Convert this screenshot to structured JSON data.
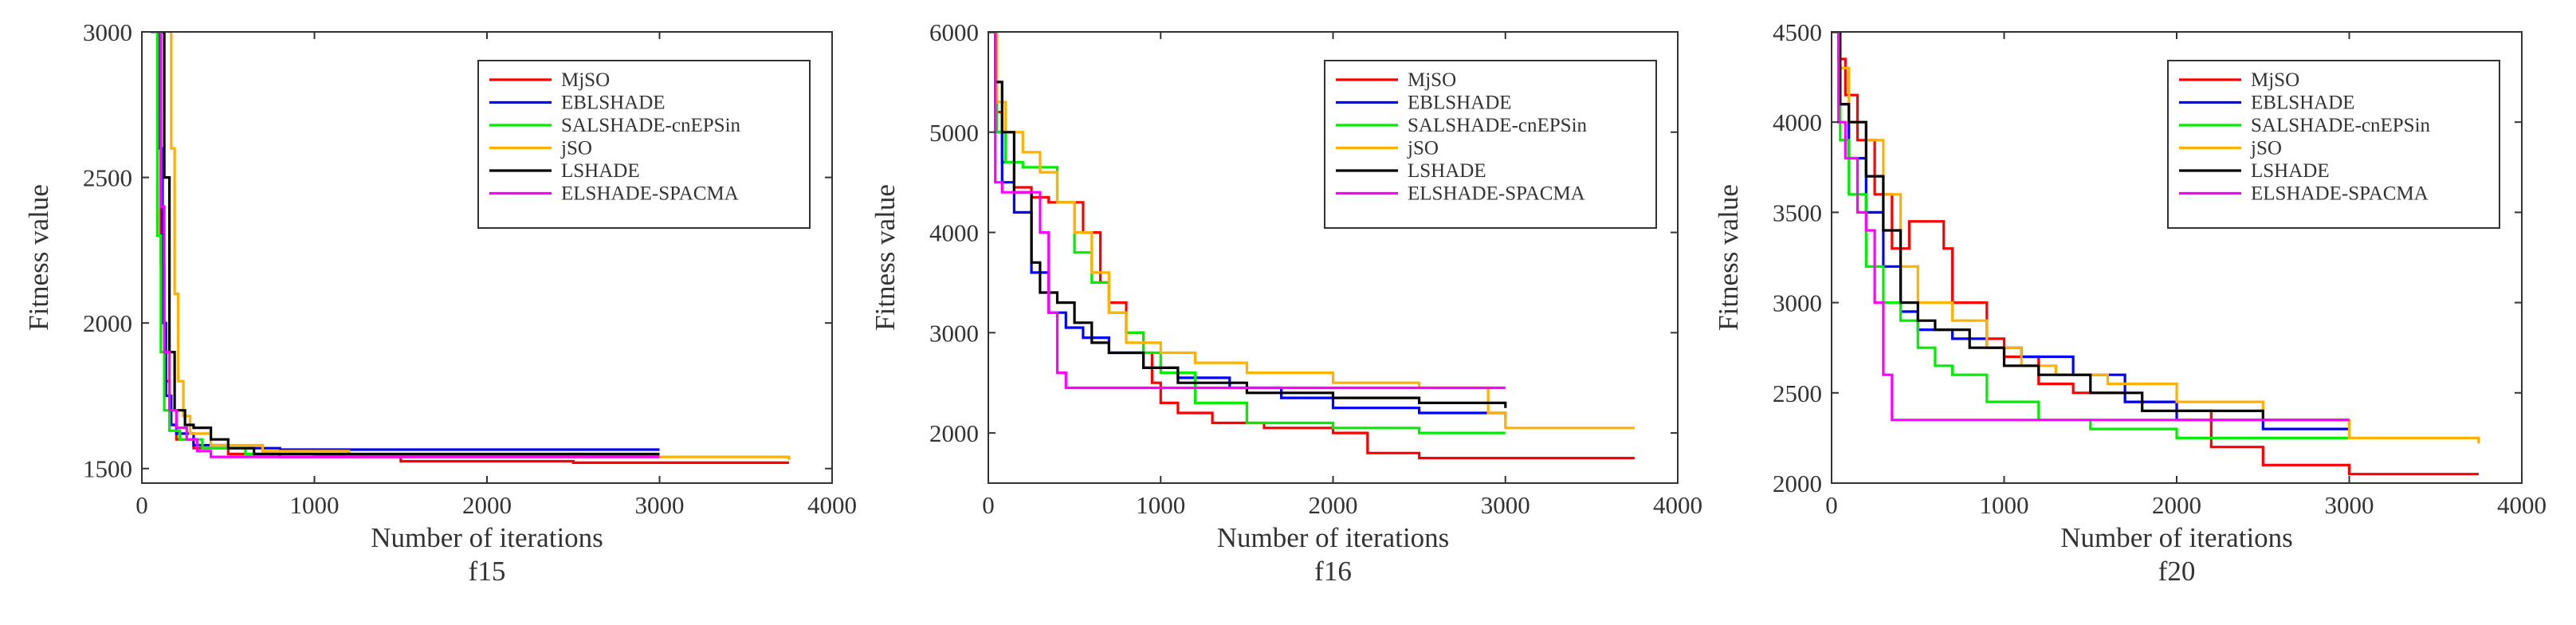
{
  "figure": {
    "description_labels": [
      "f15",
      "f16",
      "f20"
    ]
  },
  "chart_data": [
    {
      "type": "line",
      "title": "f15",
      "xlabel": "Number of iterations",
      "ylabel": "Fitness value",
      "xlim": [
        0,
        4000
      ],
      "ylim": [
        1450,
        3000
      ],
      "xticks": [
        0,
        1000,
        2000,
        3000,
        4000
      ],
      "yticks": [
        1500,
        2000,
        2500,
        3000
      ],
      "grid": false,
      "legend": "top-right",
      "series": [
        {
          "name": "MjSO",
          "color": "#ff0000",
          "x": [
            50,
            90,
            110,
            130,
            160,
            200,
            300,
            500,
            800,
            1500,
            2500,
            3750
          ],
          "y": [
            3000,
            2700,
            2200,
            1800,
            1650,
            1600,
            1570,
            1550,
            1540,
            1525,
            1520,
            1520
          ]
        },
        {
          "name": "EBLSHADE",
          "color": "#0000ff",
          "x": [
            80,
            100,
            120,
            140,
            170,
            200,
            300,
            500,
            800,
            3000
          ],
          "y": [
            3000,
            2600,
            2000,
            1750,
            1650,
            1620,
            1580,
            1570,
            1565,
            1565
          ]
        },
        {
          "name": "SALSHADE-cnEPSin",
          "color": "#00ee00",
          "x": [
            70,
            90,
            110,
            130,
            160,
            220,
            350,
            600,
            1000,
            3000
          ],
          "y": [
            3000,
            2300,
            1900,
            1700,
            1630,
            1600,
            1570,
            1550,
            1545,
            1545
          ]
        },
        {
          "name": "jSO",
          "color": "#ffb000",
          "x": [
            150,
            170,
            190,
            210,
            240,
            280,
            400,
            700,
            1200,
            3750
          ],
          "y": [
            3000,
            2600,
            2100,
            1800,
            1680,
            1620,
            1580,
            1560,
            1540,
            1530
          ]
        },
        {
          "name": "LSHADE",
          "color": "#000000",
          "x": [
            100,
            130,
            160,
            190,
            250,
            300,
            400,
            500,
            650,
            1000,
            3000
          ],
          "y": [
            3000,
            2500,
            1900,
            1700,
            1650,
            1640,
            1600,
            1570,
            1550,
            1550,
            1550
          ]
        },
        {
          "name": "ELSHADE-SPACMA",
          "color": "#ff00ff",
          "x": [
            90,
            110,
            130,
            160,
            200,
            260,
            320,
            400,
            3000
          ],
          "y": [
            3000,
            2400,
            1900,
            1700,
            1640,
            1600,
            1560,
            1540,
            1540
          ]
        }
      ]
    },
    {
      "type": "line",
      "title": "f16",
      "xlabel": "Number of iterations",
      "ylabel": "Fitness value",
      "xlim": [
        0,
        4000
      ],
      "ylim": [
        1500,
        6000
      ],
      "xticks": [
        0,
        1000,
        2000,
        3000,
        4000
      ],
      "yticks": [
        2000,
        3000,
        4000,
        5000,
        6000
      ],
      "grid": false,
      "legend": "top-right",
      "series": [
        {
          "name": "MjSO",
          "color": "#ff0000",
          "x": [
            0,
            40,
            80,
            150,
            250,
            350,
            450,
            550,
            650,
            700,
            800,
            900,
            950,
            1000,
            1100,
            1300,
            1600,
            2000,
            2200,
            2500,
            3750
          ],
          "y": [
            6000,
            5200,
            4700,
            4450,
            4350,
            4300,
            4300,
            4000,
            3500,
            3300,
            3000,
            2800,
            2500,
            2300,
            2200,
            2100,
            2050,
            2000,
            1800,
            1750,
            1750
          ]
        },
        {
          "name": "EBLSHADE",
          "color": "#0000ff",
          "x": [
            0,
            40,
            80,
            150,
            250,
            350,
            450,
            550,
            700,
            900,
            1100,
            1400,
            1700,
            2000,
            2500,
            3000
          ],
          "y": [
            6000,
            5000,
            4500,
            4200,
            3600,
            3200,
            3050,
            2950,
            2800,
            2650,
            2550,
            2450,
            2350,
            2250,
            2200,
            2150
          ]
        },
        {
          "name": "SALSHADE-cnEPSin",
          "color": "#00ee00",
          "x": [
            0,
            50,
            100,
            200,
            300,
            400,
            500,
            600,
            700,
            800,
            900,
            1000,
            1200,
            1500,
            2000,
            2500,
            3000
          ],
          "y": [
            6000,
            5000,
            4700,
            4650,
            4650,
            4300,
            3800,
            3500,
            3200,
            3000,
            2800,
            2600,
            2300,
            2100,
            2050,
            2000,
            2000
          ]
        },
        {
          "name": "jSO",
          "color": "#ffb000",
          "x": [
            0,
            50,
            100,
            200,
            300,
            400,
            500,
            600,
            700,
            800,
            1000,
            1200,
            1500,
            2000,
            2500,
            2900,
            3000,
            3750
          ],
          "y": [
            6000,
            5300,
            5000,
            4800,
            4600,
            4300,
            4000,
            3600,
            3200,
            2900,
            2800,
            2700,
            2600,
            2500,
            2450,
            2200,
            2050,
            2050
          ]
        },
        {
          "name": "LSHADE",
          "color": "#000000",
          "x": [
            0,
            40,
            80,
            150,
            250,
            300,
            400,
            500,
            600,
            700,
            900,
            1100,
            1500,
            2000,
            2500,
            3000
          ],
          "y": [
            6000,
            5500,
            5000,
            4400,
            3700,
            3400,
            3300,
            3100,
            2900,
            2800,
            2650,
            2500,
            2400,
            2350,
            2300,
            2250
          ]
        },
        {
          "name": "ELSHADE-SPACMA",
          "color": "#ff00ff",
          "x": [
            0,
            40,
            80,
            150,
            250,
            300,
            350,
            400,
            450,
            500,
            600,
            800,
            1000,
            2000,
            3000
          ],
          "y": [
            6000,
            4500,
            4400,
            4400,
            4400,
            4000,
            3200,
            2600,
            2450,
            2450,
            2450,
            2450,
            2450,
            2450,
            2450
          ]
        }
      ]
    },
    {
      "type": "line",
      "title": "f20",
      "xlabel": "Number of iterations",
      "ylabel": "Fitness value",
      "xlim": [
        0,
        4000
      ],
      "ylim": [
        2000,
        4500
      ],
      "xticks": [
        0,
        1000,
        2000,
        3000,
        4000
      ],
      "yticks": [
        2000,
        2500,
        3000,
        3500,
        4000,
        4500
      ],
      "grid": false,
      "legend": "top-right",
      "series": [
        {
          "name": "MjSO",
          "color": "#ff0000",
          "x": [
            0,
            40,
            80,
            150,
            250,
            350,
            450,
            550,
            650,
            700,
            800,
            900,
            1000,
            1200,
            1400,
            1700,
            2000,
            2200,
            2500,
            3000,
            3750
          ],
          "y": [
            4500,
            4350,
            4150,
            3900,
            3600,
            3300,
            3450,
            3450,
            3300,
            3000,
            3000,
            2800,
            2700,
            2550,
            2500,
            2450,
            2400,
            2200,
            2100,
            2050,
            2050
          ]
        },
        {
          "name": "EBLSHADE",
          "color": "#0000ff",
          "x": [
            0,
            50,
            100,
            200,
            300,
            400,
            500,
            700,
            900,
            1100,
            1400,
            1700,
            2000,
            2500,
            3000
          ],
          "y": [
            4500,
            4100,
            3800,
            3500,
            3200,
            2950,
            2850,
            2800,
            2750,
            2700,
            2600,
            2450,
            2350,
            2300,
            2300
          ]
        },
        {
          "name": "SALSHADE-cnEPSin",
          "color": "#00ee00",
          "x": [
            0,
            50,
            100,
            200,
            250,
            300,
            400,
            500,
            600,
            700,
            900,
            1200,
            1500,
            2000,
            2500,
            3000
          ],
          "y": [
            4500,
            3900,
            3600,
            3200,
            3200,
            3000,
            2900,
            2750,
            2650,
            2600,
            2450,
            2350,
            2300,
            2250,
            2250,
            2250
          ]
        },
        {
          "name": "jSO",
          "color": "#ffb000",
          "x": [
            0,
            50,
            100,
            200,
            300,
            400,
            500,
            700,
            900,
            1100,
            1300,
            1600,
            2000,
            2500,
            3000,
            3750
          ],
          "y": [
            4500,
            4300,
            4000,
            3900,
            3600,
            3200,
            3000,
            2900,
            2750,
            2650,
            2600,
            2550,
            2450,
            2350,
            2250,
            2220
          ]
        },
        {
          "name": "LSHADE",
          "color": "#000000",
          "x": [
            0,
            50,
            100,
            200,
            300,
            400,
            500,
            600,
            800,
            1000,
            1200,
            1500,
            1800,
            2000,
            2500,
            3000
          ],
          "y": [
            4500,
            4100,
            4000,
            3700,
            3400,
            3000,
            2900,
            2850,
            2750,
            2650,
            2600,
            2500,
            2400,
            2400,
            2350,
            2350
          ]
        },
        {
          "name": "ELSHADE-SPACMA",
          "color": "#ff00ff",
          "x": [
            0,
            40,
            80,
            150,
            200,
            250,
            300,
            350,
            400,
            500,
            1000,
            2000,
            3000
          ],
          "y": [
            4500,
            4000,
            3800,
            3500,
            3400,
            3000,
            2600,
            2350,
            2350,
            2350,
            2350,
            2350,
            2350
          ]
        }
      ]
    }
  ]
}
